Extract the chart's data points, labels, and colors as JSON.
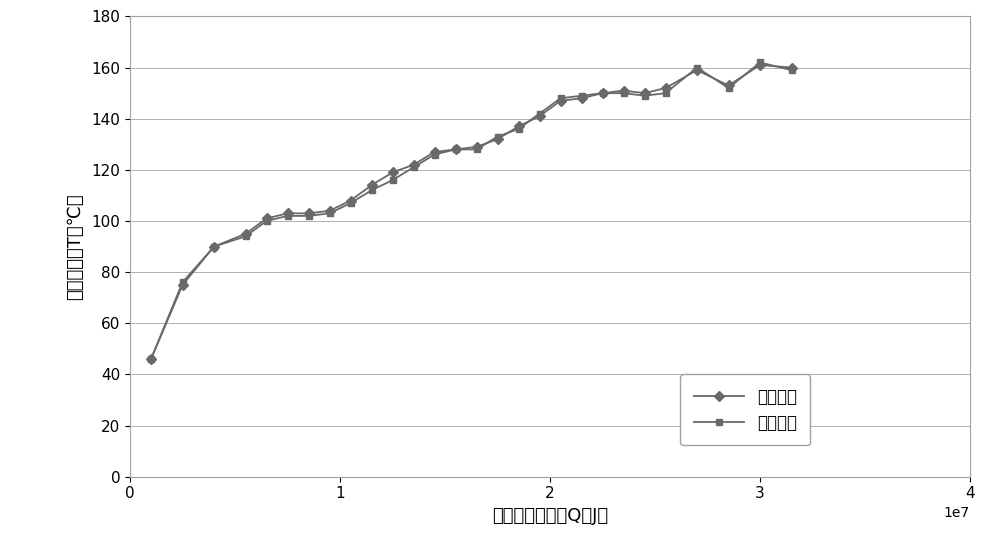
{
  "theory_x": [
    1000000,
    2500000,
    4000000,
    5500000,
    6500000,
    7500000,
    8500000,
    9500000,
    10500000,
    11500000,
    12500000,
    13500000,
    14500000,
    15500000,
    16500000,
    17500000,
    18500000,
    19500000,
    20500000,
    21500000,
    22500000,
    23500000,
    24500000,
    25500000,
    27000000,
    28500000,
    30000000,
    31500000
  ],
  "theory_y": [
    46,
    75,
    90,
    95,
    101,
    103,
    103,
    104,
    108,
    114,
    119,
    122,
    127,
    128,
    129,
    132,
    137,
    141,
    147,
    148,
    150,
    151,
    150,
    152,
    159,
    153,
    161,
    160
  ],
  "experiment_x": [
    1000000,
    2500000,
    4000000,
    5500000,
    6500000,
    7500000,
    8500000,
    9500000,
    10500000,
    11500000,
    12500000,
    13500000,
    14500000,
    15500000,
    16500000,
    17500000,
    18500000,
    19500000,
    20500000,
    21500000,
    22500000,
    23500000,
    24500000,
    25500000,
    27000000,
    28500000,
    30000000,
    31500000
  ],
  "experiment_y": [
    46,
    76,
    90,
    94,
    100,
    102,
    102,
    103,
    107,
    112,
    116,
    121,
    126,
    128,
    128,
    133,
    136,
    142,
    148,
    149,
    150,
    150,
    149,
    150,
    160,
    152,
    162,
    159
  ],
  "line_color": "#696969",
  "theory_marker": "D",
  "experiment_marker": "s",
  "marker_size": 5,
  "line_width": 1.3,
  "xlabel": "制动器吸收能量Q（J）",
  "ylabel": "制动器温度T（℃）",
  "legend_theory": "理论温度",
  "legend_experiment": "试验温度",
  "xlim": [
    0,
    40000000
  ],
  "ylim": [
    0,
    180
  ],
  "xticks": [
    0,
    10000000,
    20000000,
    30000000,
    40000000
  ],
  "yticks": [
    0,
    20,
    40,
    60,
    80,
    100,
    120,
    140,
    160,
    180
  ],
  "background_color": "#ffffff",
  "plot_bg_color": "#ffffff",
  "grid_color": "#b0b0b0",
  "spine_color": "#a0a0a0",
  "axis_fontsize": 13,
  "tick_fontsize": 11,
  "legend_fontsize": 12
}
